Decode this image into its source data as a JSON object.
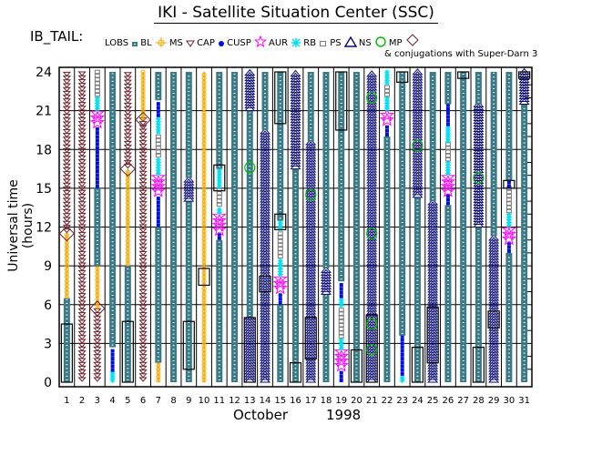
{
  "title": "IKI - Satellite Situation Center (SSC)",
  "legend": {
    "heading": "IB_TAIL:",
    "items": [
      {
        "key": "LOBS",
        "label": "LOBS",
        "color": "#3a7a86"
      },
      {
        "key": "BL",
        "label": "BL",
        "color": "#f5a800"
      },
      {
        "key": "MS",
        "label": "MS",
        "color": "#6b1f2a"
      },
      {
        "key": "CAP",
        "label": "CAP",
        "color": "#0010e0"
      },
      {
        "key": "CUSP",
        "label": "CUSP",
        "color": "#ff00ff"
      },
      {
        "key": "AUR",
        "label": "AUR",
        "color": "#00e0f0"
      },
      {
        "key": "RB",
        "label": "RB",
        "color": "#7a7a7a"
      },
      {
        "key": "PS",
        "label": "PS",
        "color": "#0a0a7a"
      },
      {
        "key": "NS",
        "label": "NS",
        "color": "#00c000"
      },
      {
        "key": "MP",
        "label": "MP",
        "color": "#6b1f2a"
      }
    ],
    "conjunction_note": "& conjugations with Super-Darn 3"
  },
  "chart_data": {
    "type": "table",
    "title": "IKI - Satellite Situation Center (SSC)",
    "xlabel": "October      1998",
    "x_month": "October",
    "x_year": "1998",
    "ylabel": "Universal time (hours)",
    "ylim": [
      0,
      24
    ],
    "yticks": [
      0,
      3,
      6,
      9,
      12,
      15,
      18,
      21,
      24
    ],
    "xticks": [
      "1",
      "2",
      "3",
      "4",
      "5",
      "6",
      "7",
      "8",
      "9",
      "10",
      "11",
      "12",
      "13",
      "14",
      "15",
      "16",
      "17",
      "18",
      "19",
      "20",
      "21",
      "22",
      "23",
      "24",
      "25",
      "26",
      "27",
      "28",
      "29",
      "30",
      "31"
    ],
    "grid": true,
    "region_colors": {
      "LOBS": "#3a7a86",
      "BL": "#f5a800",
      "MS": "#6b1f2a",
      "CAP": "#0010e0",
      "CUSP": "#ff00ff",
      "AUR": "#00e0f0",
      "RB": "#7a7a7a",
      "PS": "#0a0a7a",
      "NS": "#00c000",
      "MP": "#6b1f2a"
    },
    "days": [
      {
        "day": 1,
        "segments": [
          [
            "LOBS",
            0,
            6.5
          ],
          [
            "BL",
            6.5,
            11.5
          ],
          [
            "MS",
            11.5,
            24
          ]
        ],
        "mp": [
          11.5
        ],
        "conj": [
          [
            0,
            4.5
          ]
        ]
      },
      {
        "day": 2,
        "segments": [
          [
            "MS",
            0,
            24
          ]
        ],
        "mp": [],
        "conj": []
      },
      {
        "day": 3,
        "segments": [
          [
            "MS",
            0,
            5.7
          ],
          [
            "BL",
            5.7,
            9
          ],
          [
            "LOBS",
            9,
            15
          ],
          [
            "CAP",
            15,
            19.8
          ],
          [
            "CUSP",
            19.8,
            21
          ],
          [
            "AUR",
            21,
            22
          ],
          [
            "RB",
            22,
            24
          ]
        ],
        "mp": [
          5.7
        ],
        "conj": []
      },
      {
        "day": 4,
        "segments": [
          [
            "AUR",
            0,
            0.8
          ],
          [
            "CAP",
            0.8,
            2.7
          ],
          [
            "LOBS",
            2.7,
            24
          ]
        ],
        "mp": [],
        "conj": []
      },
      {
        "day": 5,
        "segments": [
          [
            "LOBS",
            0,
            9
          ],
          [
            "BL",
            9,
            16.5
          ],
          [
            "MS",
            16.5,
            24
          ]
        ],
        "mp": [
          16.5
        ],
        "conj": [
          [
            0,
            4.7
          ]
        ]
      },
      {
        "day": 6,
        "segments": [
          [
            "MS",
            0,
            20.3
          ],
          [
            "BL",
            20.3,
            24
          ]
        ],
        "mp": [
          20.3
        ],
        "conj": []
      },
      {
        "day": 7,
        "segments": [
          [
            "BL",
            0,
            1.5
          ],
          [
            "LOBS",
            1.5,
            12
          ],
          [
            "CAP",
            12,
            14.5
          ],
          [
            "CUSP",
            14.5,
            16
          ],
          [
            "AUR",
            16,
            17.3
          ],
          [
            "RB",
            17.3,
            19.2
          ],
          [
            "AUR",
            19.2,
            20.5
          ],
          [
            "CAP",
            20.5,
            21.8
          ],
          [
            "LOBS",
            21.8,
            24
          ]
        ],
        "mp": [],
        "conj": []
      },
      {
        "day": 8,
        "segments": [
          [
            "LOBS",
            0,
            24
          ]
        ],
        "mp": [],
        "conj": []
      },
      {
        "day": 9,
        "segments": [
          [
            "LOBS",
            0,
            14
          ],
          [
            "PS",
            14,
            15.8
          ],
          [
            "LOBS",
            15.8,
            24
          ]
        ],
        "mp": [],
        "conj": [
          [
            1,
            4.7
          ]
        ]
      },
      {
        "day": 10,
        "segments": [
          [
            "BL",
            0,
            24
          ]
        ],
        "mp": [],
        "conj": [
          [
            7.5,
            8.8
          ]
        ]
      },
      {
        "day": 11,
        "segments": [
          [
            "LOBS",
            0,
            11
          ],
          [
            "CAP",
            11,
            11.5
          ],
          [
            "CUSP",
            11.5,
            13
          ],
          [
            "AUR",
            13,
            13.5
          ],
          [
            "RB",
            13.5,
            15
          ],
          [
            "AUR",
            15,
            16.5
          ],
          [
            "LOBS",
            16.5,
            24
          ]
        ],
        "mp": [],
        "conj": [
          [
            14.8,
            16.8
          ]
        ]
      },
      {
        "day": 12,
        "segments": [
          [
            "LOBS",
            0,
            24
          ]
        ],
        "mp": [],
        "conj": []
      },
      {
        "day": 13,
        "segments": [
          [
            "PS",
            0,
            5
          ],
          [
            "LOBS",
            5,
            21
          ],
          [
            "PS",
            21,
            24
          ]
        ],
        "mp": [
          16.6
        ],
        "conj": [
          [
            0,
            5
          ]
        ]
      },
      {
        "day": 14,
        "segments": [
          [
            "PS",
            0,
            19.5
          ],
          [
            "LOBS",
            19.5,
            24
          ]
        ],
        "mp": [],
        "conj": [
          [
            7,
            8.2
          ]
        ]
      },
      {
        "day": 15,
        "segments": [
          [
            "LOBS",
            0,
            6
          ],
          [
            "CAP",
            6,
            7
          ],
          [
            "CUSP",
            7,
            8.2
          ],
          [
            "AUR",
            8.2,
            9.5
          ],
          [
            "RB",
            9.5,
            11.7
          ],
          [
            "AUR",
            11.7,
            12.5
          ],
          [
            "LOBS",
            12.5,
            24
          ]
        ],
        "mp": [],
        "conj": [
          [
            11.8,
            13
          ],
          [
            20,
            24
          ]
        ]
      },
      {
        "day": 16,
        "segments": [
          [
            "LOBS",
            0,
            16.5
          ],
          [
            "PS",
            16.5,
            24
          ]
        ],
        "mp": [],
        "conj": [
          [
            0,
            1.5
          ]
        ]
      },
      {
        "day": 17,
        "segments": [
          [
            "PS",
            0,
            18.6
          ],
          [
            "LOBS",
            18.6,
            24
          ]
        ],
        "mp": [
          14.5
        ],
        "conj": [
          [
            1.8,
            5
          ]
        ]
      },
      {
        "day": 18,
        "segments": [
          [
            "LOBS",
            0,
            6.8
          ],
          [
            "PS",
            6.8,
            8.8
          ],
          [
            "LOBS",
            8.8,
            24
          ]
        ],
        "mp": [],
        "conj": []
      },
      {
        "day": 19,
        "segments": [
          [
            "CAP",
            0,
            1
          ],
          [
            "CUSP",
            1,
            2.5
          ],
          [
            "AUR",
            2.5,
            3.3
          ],
          [
            "RB",
            3.3,
            5.8
          ],
          [
            "AUR",
            5.8,
            6.5
          ],
          [
            "CAP",
            6.5,
            7.8
          ],
          [
            "LOBS",
            7.8,
            24
          ]
        ],
        "mp": [],
        "conj": [
          [
            19.5,
            24
          ]
        ]
      },
      {
        "day": 20,
        "segments": [
          [
            "LOBS",
            0,
            24
          ]
        ],
        "mp": [],
        "conj": [
          [
            0,
            2.5
          ]
        ]
      },
      {
        "day": 21,
        "segments": [
          [
            "PS",
            0,
            24
          ]
        ],
        "mp": [
          2.5,
          4.5,
          11.5,
          22
        ],
        "conj": [
          [
            0,
            5.2
          ]
        ]
      },
      {
        "day": 22,
        "segments": [
          [
            "LOBS",
            0,
            19
          ],
          [
            "CAP",
            19,
            20
          ],
          [
            "CUSP",
            20,
            21
          ],
          [
            "AUR",
            21,
            22
          ],
          [
            "RB",
            22,
            23
          ],
          [
            "AUR",
            23,
            24
          ]
        ],
        "mp": [],
        "conj": []
      },
      {
        "day": 23,
        "segments": [
          [
            "AUR",
            0,
            0.5
          ],
          [
            "CAP",
            0.5,
            3.6
          ],
          [
            "LOBS",
            3.6,
            24
          ]
        ],
        "mp": [],
        "conj": [
          [
            23.2,
            24
          ]
        ]
      },
      {
        "day": 24,
        "segments": [
          [
            "LOBS",
            0,
            14.3
          ],
          [
            "PS",
            14.3,
            24
          ]
        ],
        "mp": [
          18.3
        ],
        "conj": [
          [
            0,
            2.7
          ]
        ]
      },
      {
        "day": 25,
        "segments": [
          [
            "PS",
            0,
            14
          ],
          [
            "LOBS",
            14,
            24
          ]
        ],
        "mp": [],
        "conj": [
          [
            1.5,
            5.8
          ]
        ]
      },
      {
        "day": 26,
        "segments": [
          [
            "LOBS",
            0,
            13.7
          ],
          [
            "CAP",
            13.7,
            14.5
          ],
          [
            "CUSP",
            14.5,
            16
          ],
          [
            "AUR",
            16,
            17
          ],
          [
            "RB",
            17,
            18.5
          ],
          [
            "AUR",
            18.5,
            19.8
          ],
          [
            "CAP",
            19.8,
            21.5
          ],
          [
            "LOBS",
            21.5,
            24
          ]
        ],
        "mp": [],
        "conj": []
      },
      {
        "day": 27,
        "segments": [
          [
            "LOBS",
            0,
            24
          ]
        ],
        "mp": [],
        "conj": [
          [
            23.5,
            24
          ]
        ]
      },
      {
        "day": 28,
        "segments": [
          [
            "LOBS",
            0,
            12
          ],
          [
            "PS",
            12,
            21.5
          ],
          [
            "LOBS",
            21.5,
            24
          ]
        ],
        "mp": [
          15.8
        ],
        "conj": [
          [
            0,
            2.7
          ]
        ]
      },
      {
        "day": 29,
        "segments": [
          [
            "PS",
            0,
            11.3
          ],
          [
            "LOBS",
            11.3,
            24
          ]
        ],
        "mp": [],
        "conj": [
          [
            4.2,
            5.5
          ]
        ]
      },
      {
        "day": 30,
        "segments": [
          [
            "LOBS",
            0,
            10
          ],
          [
            "CAP",
            10,
            10.8
          ],
          [
            "CUSP",
            10.8,
            12
          ],
          [
            "AUR",
            12,
            13
          ],
          [
            "RB",
            13,
            15
          ],
          [
            "CAP",
            15,
            15.6
          ],
          [
            "LOBS",
            15.6,
            24
          ]
        ],
        "mp": [],
        "conj": [
          [
            15,
            15.6
          ]
        ]
      },
      {
        "day": 31,
        "segments": [
          [
            "LOBS",
            0,
            21.5
          ],
          [
            "PS",
            21.5,
            24
          ]
        ],
        "mp": [],
        "conj": [
          [
            23.5,
            24
          ]
        ]
      }
    ]
  }
}
